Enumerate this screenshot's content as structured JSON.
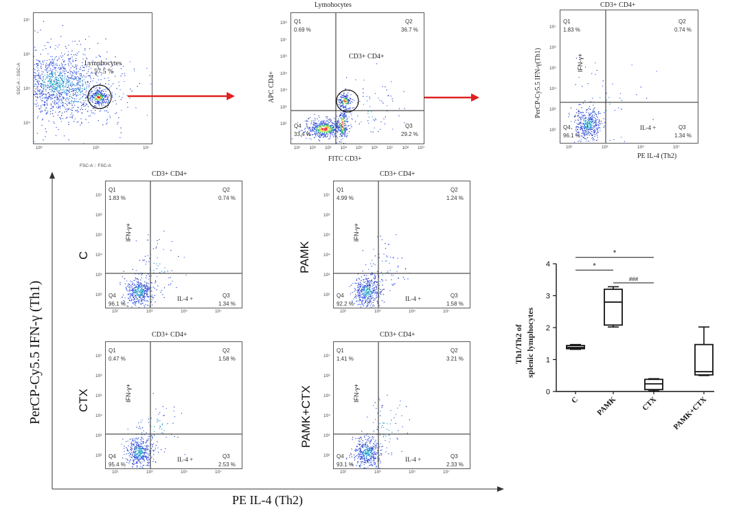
{
  "chart_data": [
    {
      "type": "scatter",
      "id": "lymph",
      "xlabel": "FSC-A :: FSC-A",
      "ylabel": "SSC-A :: SSC-A",
      "x_ticks": [
        "10⁵",
        "10⁶",
        "10⁷"
      ],
      "y_ticks": [
        "10⁷",
        "10⁶",
        "10⁵",
        "10⁴"
      ],
      "gate": {
        "label": "Lymphocytes",
        "value": "57.5 %"
      }
    },
    {
      "type": "scatter",
      "id": "cd3cd4",
      "title": "Lymohocytes",
      "xlabel": "FITC CD3+",
      "ylabel": "APC CD4+",
      "gate_label": "CD3+ CD4+",
      "x_ticks": [
        "10¹",
        "10²",
        "10³",
        "10⁴",
        "10⁵",
        "10⁶",
        "10⁷",
        "10⁸",
        "10⁹"
      ],
      "y_ticks": [
        "10⁸",
        "10⁷",
        "10⁶",
        "10⁵",
        "10⁴",
        "10³",
        "10²"
      ],
      "quadrants": {
        "Q1": "0.69 %",
        "Q2": "36.7 %",
        "Q3": "29.2 %",
        "Q4": "33.4 %"
      }
    },
    {
      "type": "scatter",
      "id": "th_overview",
      "title": "CD3+ CD4+",
      "xlabel": "PE IL-4 (Th2)",
      "ylabel": "PerCP-Cy5.5 IFN-γ(Th1)",
      "ifn_label": "IFN-γ+",
      "il4_label": "IL-4 +",
      "quadrants": {
        "Q1": "1.83 %",
        "Q2": "0.74 %",
        "Q3": "1.34 %",
        "Q4": "96.1 %"
      }
    },
    {
      "type": "scatter",
      "id": "c",
      "group": "C",
      "title": "CD3+ CD4+",
      "ifn_label": "IFN-γ+",
      "il4_label": "IL-4 +",
      "quadrants": {
        "Q1": "1.83 %",
        "Q2": "0.74 %",
        "Q3": "1.34 %",
        "Q4": "96.1 %"
      }
    },
    {
      "type": "scatter",
      "id": "pamk",
      "group": "PAMK",
      "title": "CD3+ CD4+",
      "ifn_label": "IFN-γ+",
      "il4_label": "IL-4 +",
      "quadrants": {
        "Q1": "4.99 %",
        "Q2": "1.24 %",
        "Q3": "1.58 %",
        "Q4": "92.2 %"
      }
    },
    {
      "type": "scatter",
      "id": "ctx",
      "group": "CTX",
      "title": "CD3+ CD4+",
      "ifn_label": "IFN-γ+",
      "il4_label": "IL-4 +",
      "quadrants": {
        "Q1": "0.47 %",
        "Q2": "1.58 %",
        "Q3": "2.53 %",
        "Q4": "95.4 %"
      }
    },
    {
      "type": "scatter",
      "id": "pamkctx",
      "group": "PAMK+CTX",
      "title": "CD3+ CD4+",
      "ifn_label": "IFN-γ+",
      "il4_label": "IL-4 +",
      "quadrants": {
        "Q1": "1.41 %",
        "Q2": "3.21 %",
        "Q3": "2.33 %",
        "Q4": "93.1 %"
      }
    },
    {
      "type": "box",
      "id": "ratio",
      "ylabel_line1": "Th1/Th2 of",
      "ylabel_line2": "splenic lymphocytes",
      "ylim": [
        0,
        4
      ],
      "yticks": [
        "0",
        "1",
        "2",
        "3",
        "4"
      ],
      "categories": [
        "C",
        "PAMK",
        "CTX",
        "PAMK+CTX"
      ],
      "boxes": [
        {
          "min": 1.32,
          "q1": 1.34,
          "median": 1.38,
          "q3": 1.44,
          "max": 1.47
        },
        {
          "min": 2.02,
          "q1": 2.08,
          "median": 2.8,
          "q3": 3.2,
          "max": 3.28
        },
        {
          "min": 0.02,
          "q1": 0.06,
          "median": 0.24,
          "q3": 0.38,
          "max": 0.4
        },
        {
          "min": 0.5,
          "q1": 0.52,
          "median": 0.62,
          "q3": 1.47,
          "max": 2.02
        }
      ],
      "significance": [
        {
          "from": "C",
          "to": "CTX",
          "label": "*",
          "y": 4.2
        },
        {
          "from": "C",
          "to": "PAMK",
          "label": "*",
          "y": 3.8
        },
        {
          "from": "PAMK",
          "to": "CTX",
          "label": "###",
          "y": 3.4
        }
      ]
    }
  ],
  "figure": {
    "y_axis_label": "PerCP-Cy5.5 IFN-γ (Th1)",
    "x_axis_label": "PE IL-4 (Th2)",
    "small_ticks": [
      "10¹",
      "10³",
      "10⁵",
      "10⁷"
    ],
    "small_yticks": [
      "10⁷",
      "10⁶",
      "10⁵",
      "10⁴",
      "10³",
      "10²"
    ],
    "arrow_color": "#e0201f",
    "gate_color": "#111111"
  }
}
